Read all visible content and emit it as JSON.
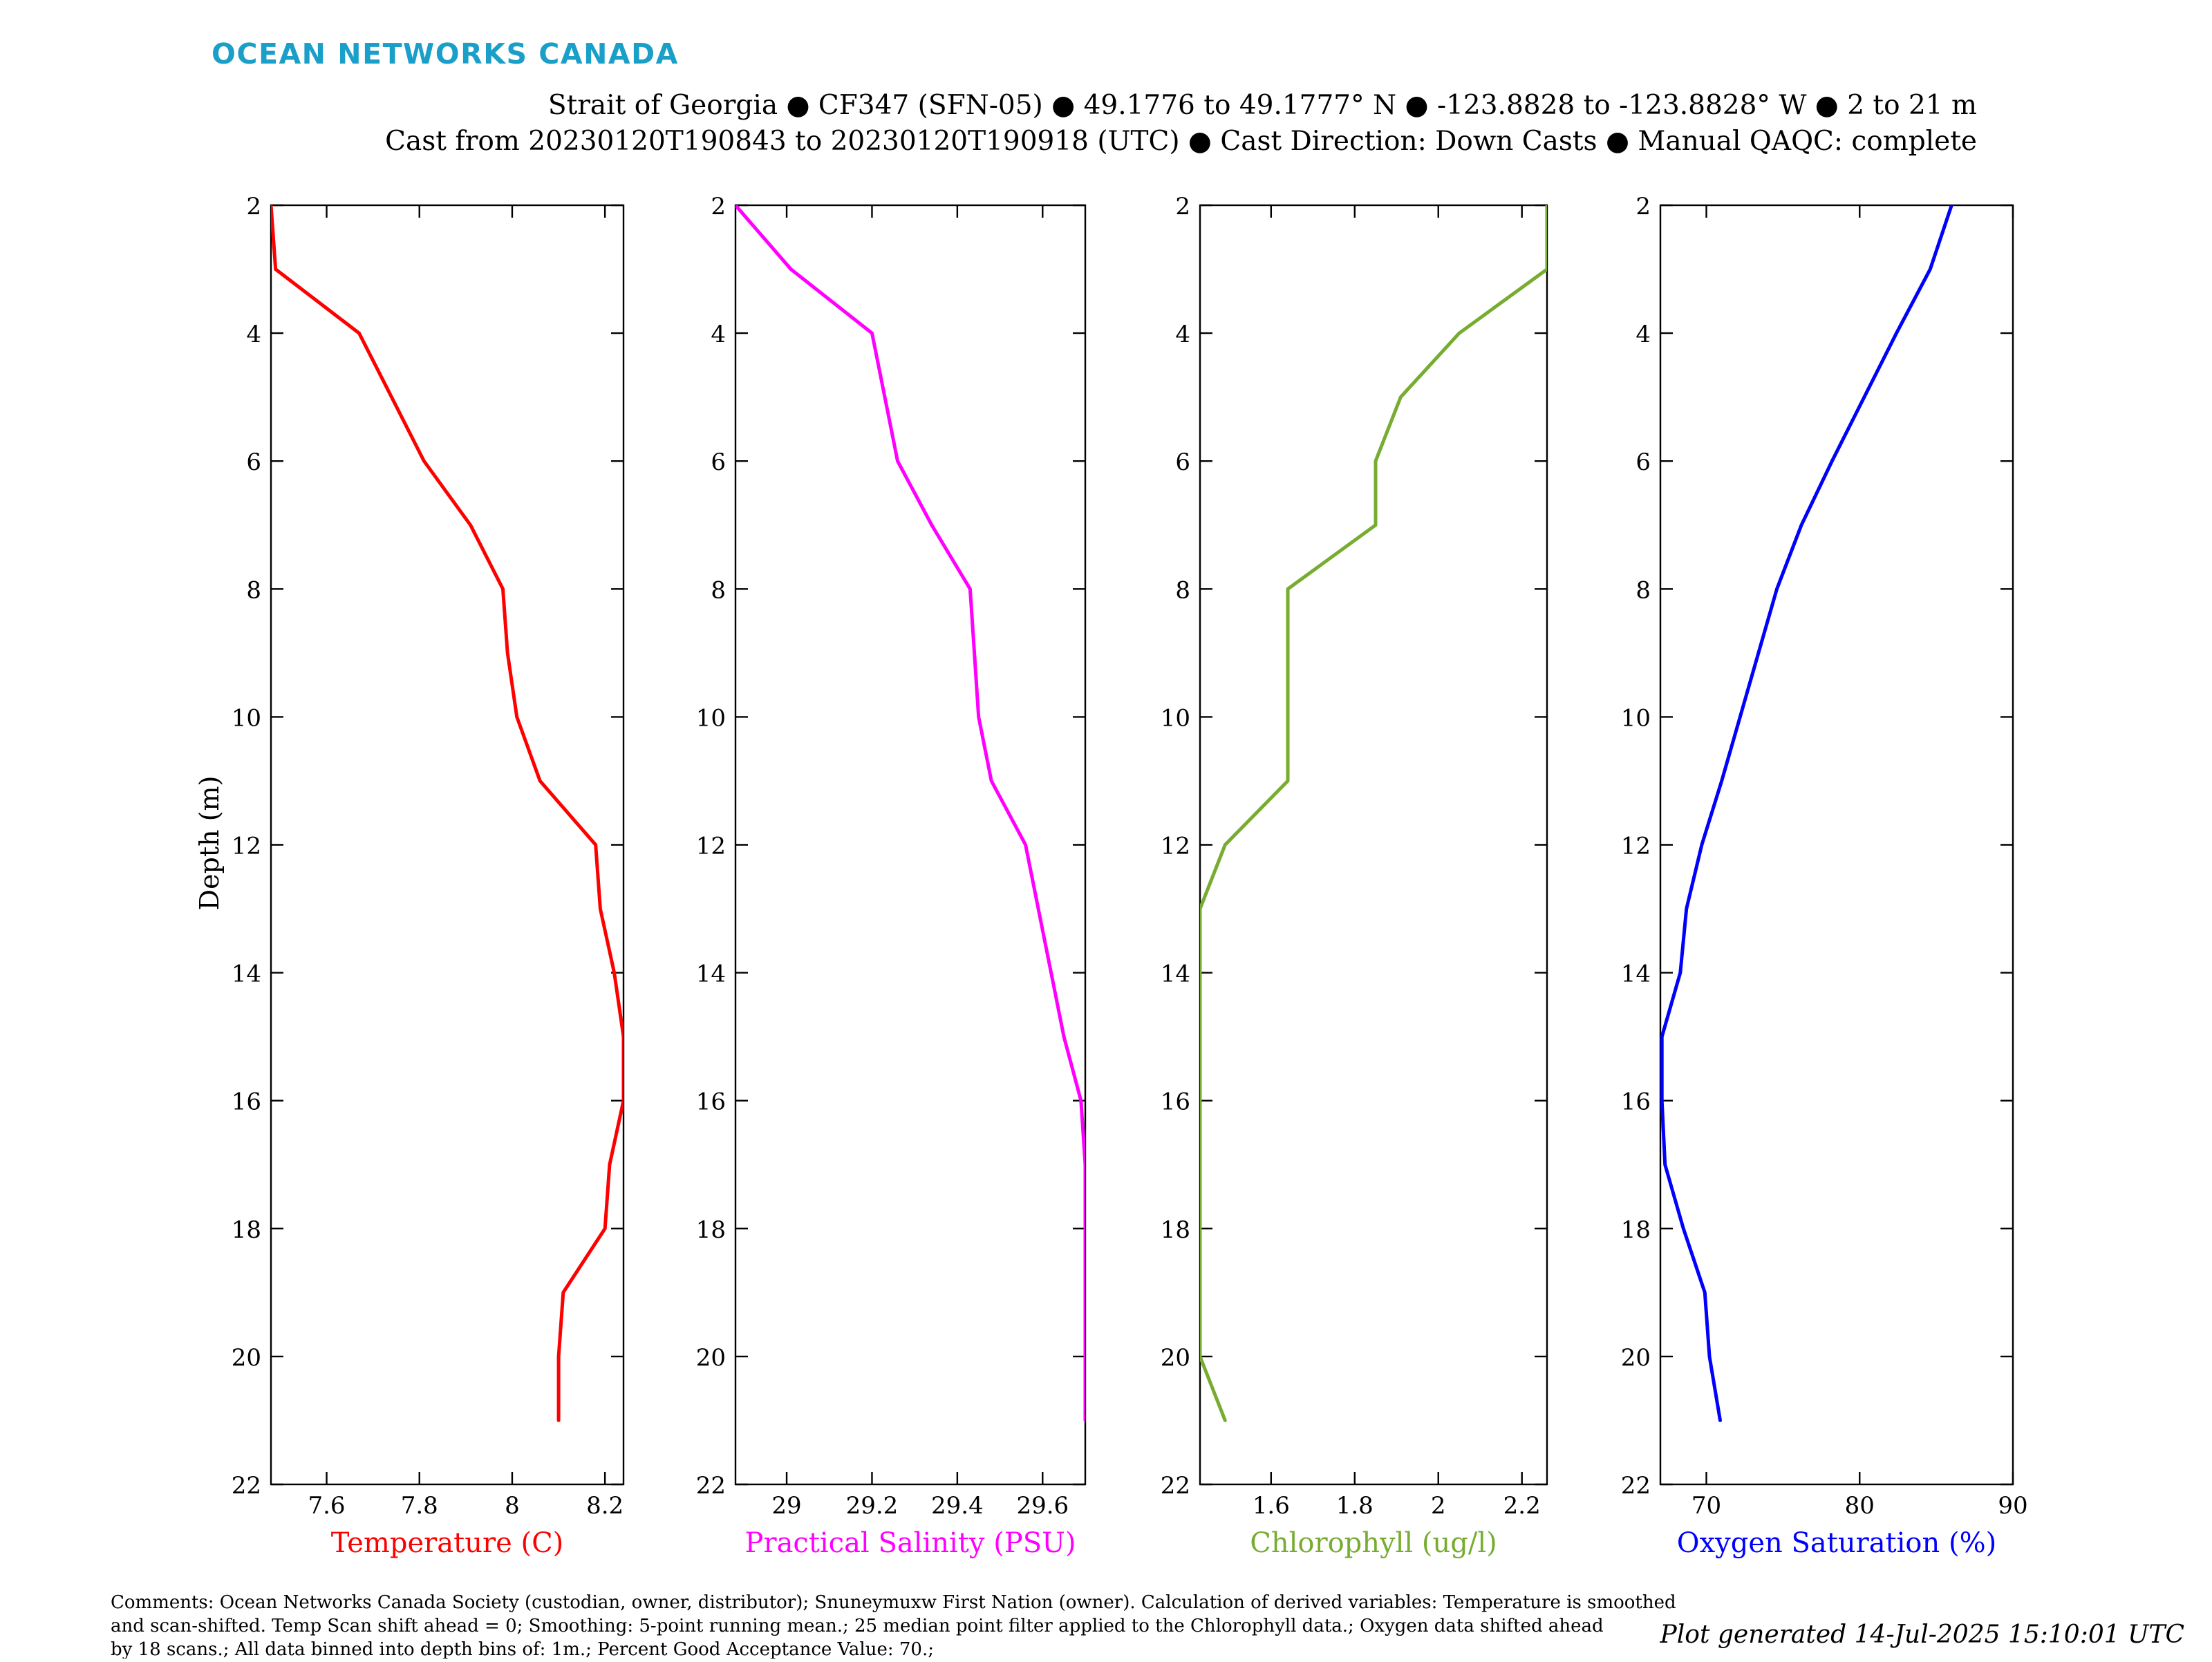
{
  "brand": {
    "name": "OCEAN NETWORKS CANADA",
    "color": "#1a9fc9"
  },
  "header": {
    "line1": "Strait of Georgia ● CF347 (SFN-05) ● 49.1776 to 49.1777° N ● -123.8828 to -123.8828° W ● 2 to 21 m",
    "line2": "Cast from 20230120T190843 to 20230120T190918 (UTC) ● Cast Direction: Down Casts ● Manual QAQC: complete"
  },
  "footer": {
    "comments_line1": "Comments: Ocean Networks Canada Society (custodian, owner, distributor); Snuneymuxw First Nation (owner). Calculation of derived variables: Temperature is smoothed",
    "comments_line2": "and scan-shifted. Temp Scan shift ahead = 0; Smoothing: 5-point running mean.; 25 median point filter applied to the Chlorophyll data.; Oxygen data shifted ahead",
    "comments_line3": "by 18 scans.; All data binned into depth bins of: 1m.; Percent Good Acceptance Value: 70.;",
    "generated": "Plot generated 14-Jul-2025 15:10:01 UTC"
  },
  "chart_data": [
    {
      "type": "line",
      "xlabel": "Temperature (C)",
      "ylabel": "Depth (m)",
      "color": "#ff0000",
      "xlim": [
        7.48,
        8.24
      ],
      "ylim": [
        2,
        22
      ],
      "y_reversed": true,
      "xticks": [
        7.6,
        7.8,
        8,
        8.2
      ],
      "xtick_labels": [
        "7.6",
        "7.8",
        "8",
        "8.2"
      ],
      "yticks": [
        2,
        4,
        6,
        8,
        10,
        12,
        14,
        16,
        18,
        20,
        22
      ],
      "depth": [
        2,
        3,
        4,
        5,
        6,
        7,
        8,
        9,
        10,
        11,
        12,
        13,
        14,
        15,
        16,
        17,
        18,
        19,
        20,
        21
      ],
      "values": [
        7.48,
        7.49,
        7.67,
        7.74,
        7.81,
        7.91,
        7.98,
        7.99,
        8.01,
        8.06,
        8.18,
        8.19,
        8.22,
        8.24,
        8.24,
        8.21,
        8.2,
        8.11,
        8.1,
        8.1
      ]
    },
    {
      "type": "line",
      "xlabel": "Practical Salinity (PSU)",
      "color": "#ff00ff",
      "xlim": [
        28.88,
        29.7
      ],
      "ylim": [
        2,
        22
      ],
      "y_reversed": true,
      "xticks": [
        29,
        29.2,
        29.4,
        29.6
      ],
      "xtick_labels": [
        "29",
        "29.2",
        "29.4",
        "29.6"
      ],
      "yticks": [
        2,
        4,
        6,
        8,
        10,
        12,
        14,
        16,
        18,
        20,
        22
      ],
      "depth": [
        2,
        3,
        4,
        5,
        6,
        7,
        8,
        9,
        10,
        11,
        12,
        13,
        14,
        15,
        16,
        17,
        18,
        19,
        20,
        21
      ],
      "values": [
        28.88,
        29.01,
        29.2,
        29.23,
        29.26,
        29.34,
        29.43,
        29.44,
        29.45,
        29.48,
        29.56,
        29.59,
        29.62,
        29.65,
        29.69,
        29.7,
        29.7,
        29.7,
        29.7,
        29.7
      ]
    },
    {
      "type": "line",
      "xlabel": "Chlorophyll (ug/l)",
      "color": "#77ac30",
      "xlim": [
        1.43,
        2.26
      ],
      "ylim": [
        2,
        22
      ],
      "y_reversed": true,
      "xticks": [
        1.6,
        1.8,
        2,
        2.2
      ],
      "xtick_labels": [
        "1.6",
        "1.8",
        "2",
        "2.2"
      ],
      "yticks": [
        2,
        4,
        6,
        8,
        10,
        12,
        14,
        16,
        18,
        20,
        22
      ],
      "depth": [
        2,
        3,
        4,
        5,
        6,
        7,
        8,
        9,
        10,
        11,
        12,
        13,
        14,
        15,
        16,
        17,
        18,
        19,
        20,
        21
      ],
      "values": [
        2.26,
        2.26,
        2.05,
        1.91,
        1.85,
        1.85,
        1.64,
        1.64,
        1.64,
        1.64,
        1.49,
        1.43,
        1.43,
        1.43,
        1.43,
        1.43,
        1.43,
        1.43,
        1.43,
        1.49
      ]
    },
    {
      "type": "line",
      "xlabel": "Oxygen Saturation (%)",
      "color": "#0000ff",
      "xlim": [
        67,
        90
      ],
      "ylim": [
        2,
        22
      ],
      "y_reversed": true,
      "xticks": [
        70,
        80,
        90
      ],
      "xtick_labels": [
        "70",
        "80",
        "90"
      ],
      "yticks": [
        2,
        4,
        6,
        8,
        10,
        12,
        14,
        16,
        18,
        20,
        22
      ],
      "depth": [
        2,
        3,
        4,
        5,
        6,
        7,
        8,
        9,
        10,
        11,
        12,
        13,
        14,
        15,
        16,
        17,
        18,
        19,
        20,
        21
      ],
      "values": [
        86,
        84.6,
        82.4,
        80.3,
        78.2,
        76.2,
        74.6,
        73.4,
        72.2,
        71,
        69.7,
        68.7,
        68.3,
        67.1,
        67.1,
        67.3,
        68.5,
        69.9,
        70.2,
        70.9
      ]
    }
  ]
}
